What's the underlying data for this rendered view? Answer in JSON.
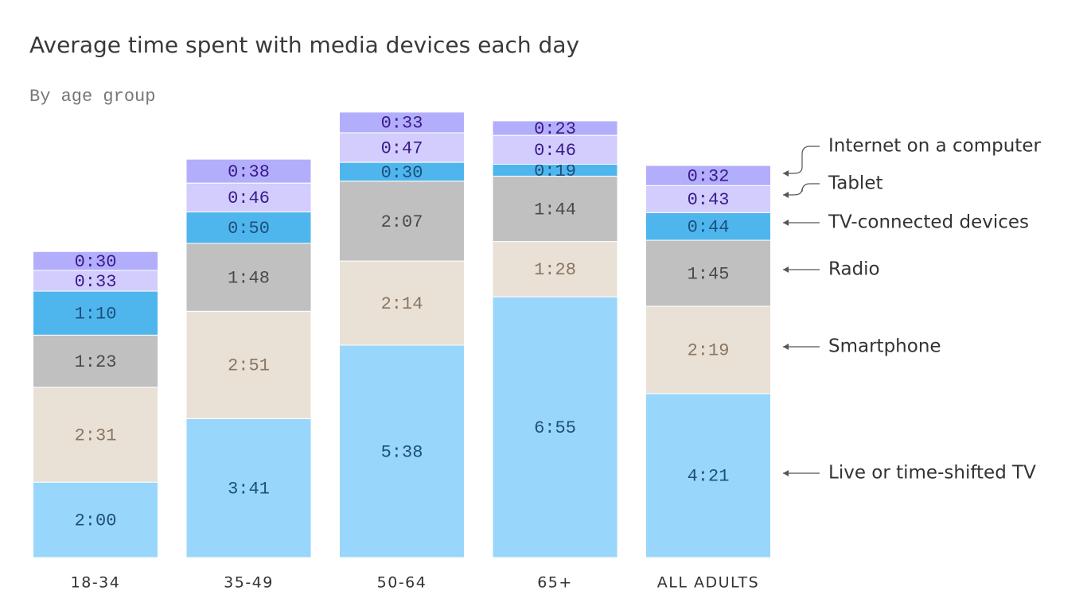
{
  "chart_data": {
    "type": "stacked_bar",
    "title": "Average time spent with media devices each day",
    "subtitle": "By age group",
    "categories": [
      "18-34",
      "35-49",
      "50-64",
      "65+",
      "ALL ADULTS"
    ],
    "series": [
      {
        "name": "Live or  time-shifted TV",
        "color": "#99d6fb",
        "label_color": "#1d4f7c",
        "values": [
          120,
          221,
          338,
          415,
          261
        ],
        "value_labels": [
          "2:00",
          "3:41",
          "5:38",
          "6:55",
          "4:21"
        ]
      },
      {
        "name": "Smartphone",
        "color": "#e9e1d6",
        "label_color": "#8a7560",
        "values": [
          151,
          171,
          134,
          88,
          139
        ],
        "value_labels": [
          "2:31",
          "2:51",
          "2:14",
          "1:28",
          "2:19"
        ]
      },
      {
        "name": "Radio",
        "color": "#c0c0c0",
        "label_color": "#4a4a4a",
        "values": [
          83,
          108,
          127,
          104,
          105
        ],
        "value_labels": [
          "1:23",
          "1:48",
          "2:07",
          "1:44",
          "1:45"
        ]
      },
      {
        "name": "TV-connected devices",
        "color": "#4fb6ed",
        "label_color": "#1d4f7c",
        "values": [
          70,
          50,
          30,
          19,
          44
        ],
        "value_labels": [
          "1:10",
          "0:50",
          "0:30",
          "0:19",
          "0:44"
        ]
      },
      {
        "name": "Tablet",
        "color": "#d2cdfc",
        "label_color": "#3a1a8c",
        "values": [
          33,
          46,
          47,
          46,
          43
        ],
        "value_labels": [
          "0:33",
          "0:46",
          "0:47",
          "0:46",
          "0:43"
        ]
      },
      {
        "name": "Internet on a computer",
        "color": "#b3aefc",
        "label_color": "#3a1a8c",
        "values": [
          30,
          38,
          33,
          23,
          32
        ],
        "value_labels": [
          "0:30",
          "0:38",
          "0:33",
          "0:23",
          "0:32"
        ]
      }
    ]
  }
}
